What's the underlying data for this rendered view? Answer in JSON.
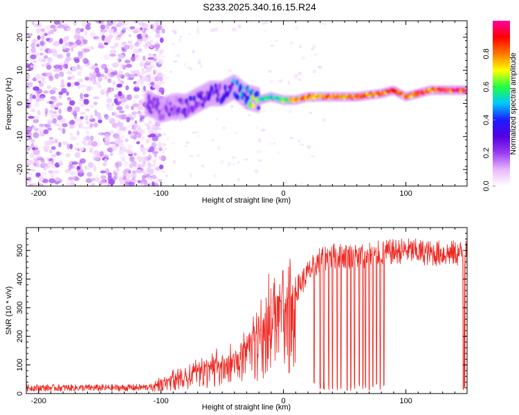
{
  "title": "S233.2025.340.16.15.R24",
  "colors": {
    "snr_line": "#ee2a24",
    "colormap": [
      "#ffffff",
      "#e9b8ff",
      "#9a3cf2",
      "#5400e0",
      "#1c1cff",
      "#00c8ff",
      "#20ff40",
      "#ffff00",
      "#ff7800",
      "#ff0000",
      "#ff00a0"
    ]
  },
  "chart_data": [
    {
      "type": "heatmap",
      "title": "",
      "xlabel": "Height of straight line (km)",
      "ylabel": "Frequency (Hz)",
      "xlim": [
        -210,
        150
      ],
      "ylim": [
        -25,
        25
      ],
      "xticks": [
        -200,
        -100,
        0,
        100
      ],
      "yticks": [
        -20,
        -10,
        0,
        10,
        20
      ],
      "colorbar": {
        "label": "Normalized spectral amplitude",
        "range": [
          0,
          1
        ],
        "ticks": [
          0.0,
          0.2,
          0.4,
          0.6,
          0.8
        ]
      },
      "ridge": {
        "x": [
          -110,
          -100,
          -90,
          -80,
          -70,
          -60,
          -50,
          -40,
          -30,
          -20,
          -10,
          0,
          10,
          20,
          40,
          60,
          80,
          90,
          100,
          110,
          120,
          130,
          150
        ],
        "y": [
          0,
          -2,
          -1,
          -1,
          1,
          3,
          3,
          5,
          2,
          1,
          2,
          1,
          1,
          2,
          2,
          2,
          3,
          4,
          2,
          3,
          4,
          4,
          4
        ],
        "amp": [
          0.2,
          0.2,
          0.25,
          0.25,
          0.3,
          0.3,
          0.3,
          0.4,
          0.5,
          0.6,
          0.6,
          0.65,
          0.8,
          0.85,
          0.85,
          0.85,
          0.9,
          0.9,
          0.85,
          0.95,
          0.9,
          0.95,
          0.95
        ]
      },
      "noise_region_x": [
        -210,
        -110
      ]
    },
    {
      "type": "line",
      "title": "",
      "xlabel": "Height of straight line (km)",
      "ylabel": "SNR (10 * v/v)",
      "xlim": [
        -210,
        150
      ],
      "ylim": [
        0,
        580
      ],
      "xticks": [
        -200,
        -100,
        0,
        100
      ],
      "yticks": [
        0,
        100,
        200,
        300,
        400,
        500
      ],
      "series": [
        {
          "name": "SNR",
          "x": [
            -210,
            -190,
            -170,
            -150,
            -130,
            -110,
            -100,
            -90,
            -80,
            -70,
            -60,
            -50,
            -40,
            -30,
            -20,
            -10,
            0,
            10,
            20,
            30,
            40,
            60,
            80,
            100,
            120,
            140,
            150
          ],
          "values": [
            20,
            20,
            20,
            20,
            20,
            22,
            40,
            60,
            75,
            85,
            100,
            110,
            120,
            170,
            230,
            300,
            330,
            360,
            420,
            470,
            480,
            480,
            490,
            500,
            490,
            490,
            490
          ]
        }
      ],
      "dropouts_x": [
        25,
        30,
        33,
        37,
        40,
        44,
        47,
        52,
        55,
        58,
        62,
        65,
        67,
        70,
        73,
        76,
        79,
        82,
        147,
        148
      ]
    }
  ]
}
